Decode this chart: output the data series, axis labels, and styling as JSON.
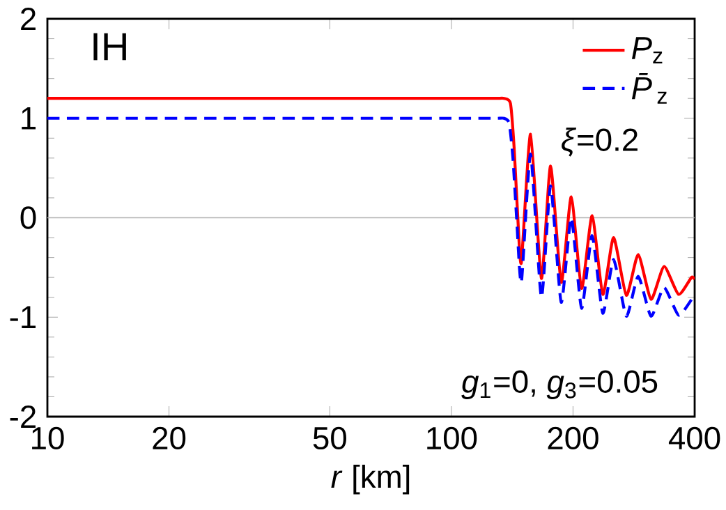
{
  "chart_data": {
    "type": "line",
    "xlabel": "*r* [km]",
    "log": "x",
    "xlim": [
      10,
      400
    ],
    "xticks": [
      10,
      20,
      50,
      100,
      200,
      400
    ],
    "ylim": [
      -2,
      2
    ],
    "yticks": [
      -2,
      -1,
      0,
      1,
      2
    ],
    "legend": "top right",
    "grid": false,
    "series": [
      {
        "name": "*P*$_{z}$",
        "color": "#ff0000",
        "line_style": "solid",
        "x": [
          10,
          50,
          100,
          120,
          130,
          135,
          140,
          143,
          146,
          149,
          157,
          167,
          176,
          187,
          198,
          210,
          223,
          237,
          252,
          271,
          290,
          312,
          336,
          365,
          393,
          400
        ],
        "values": [
          1.2,
          1.2,
          1.2,
          1.2,
          1.2,
          1.2,
          1.15,
          0.7,
          0.0,
          -0.45,
          0.84,
          -0.61,
          0.52,
          -0.65,
          0.21,
          -0.71,
          0.02,
          -0.77,
          -0.2,
          -0.78,
          -0.37,
          -0.82,
          -0.49,
          -0.77,
          -0.6,
          -0.62
        ]
      },
      {
        "name": "*P̄*$_{z}$",
        "color": "#0000ff",
        "line_style": "dashed",
        "x": [
          10,
          50,
          100,
          120,
          130,
          135,
          139,
          142,
          145,
          149,
          157,
          167,
          176,
          187,
          198,
          210,
          223,
          237,
          252,
          271,
          290,
          312,
          336,
          365,
          395,
          400
        ],
        "values": [
          1.0,
          1.0,
          1.0,
          1.0,
          1.0,
          1.0,
          0.95,
          0.6,
          0.0,
          -0.65,
          0.64,
          -0.8,
          0.32,
          -0.85,
          0.0,
          -0.91,
          -0.18,
          -0.96,
          -0.42,
          -0.99,
          -0.59,
          -0.99,
          -0.7,
          -0.98,
          -0.81,
          -0.8
        ]
      }
    ],
    "ref_lines": [
      {
        "axis": "y",
        "value": 0,
        "color": "#b4b4b4"
      }
    ],
    "annotations": [
      "IH",
      "*ξ*=0.2",
      "*g*$_{1}$=0, *g*$_{3}$=0.05"
    ]
  }
}
